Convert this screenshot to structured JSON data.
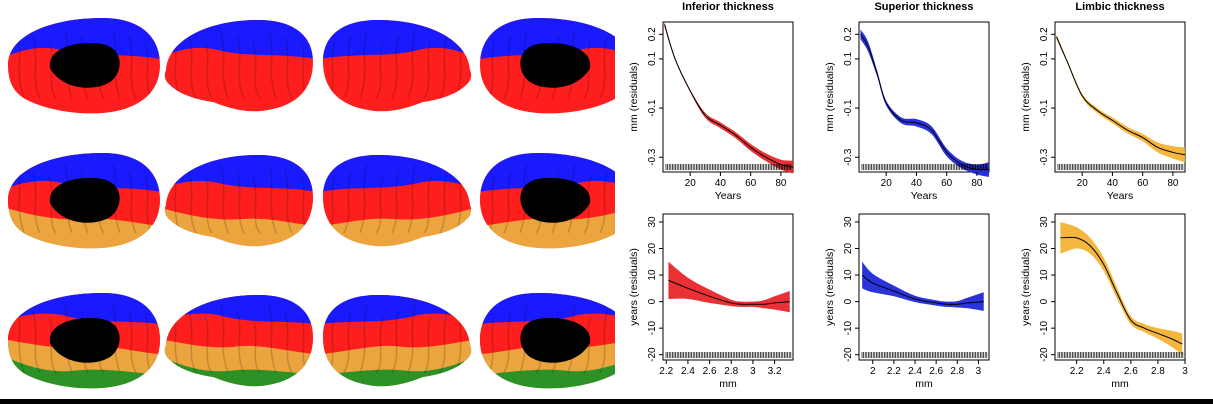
{
  "figure": {
    "brain_rows": [
      {
        "name": "two-cluster",
        "colors": [
          "blue",
          "red"
        ]
      },
      {
        "name": "three-cluster",
        "colors": [
          "blue",
          "red",
          "orange"
        ]
      },
      {
        "name": "four-cluster",
        "colors": [
          "blue",
          "red",
          "orange",
          "green"
        ]
      }
    ],
    "colors": {
      "blue": "#1a1aff",
      "red": "#ff1e1e",
      "orange": "#eba43e",
      "green": "#2d9226",
      "medial_wall": "#000000",
      "band_red": "#e8262a",
      "band_blue": "#1f27d8",
      "band_orange": "#f3b232"
    }
  },
  "chart_data": [
    {
      "type": "line",
      "title": "Inferior thickness",
      "xlabel": "Years",
      "ylabel": "mm (residuals)",
      "xlim": [
        2,
        88
      ],
      "ylim": [
        -0.36,
        0.25
      ],
      "xticks": [
        20,
        40,
        60,
        80
      ],
      "yticks": [
        0.2,
        0.1,
        -0.1,
        -0.3
      ],
      "color": "red",
      "x": [
        3,
        10,
        20,
        30,
        40,
        50,
        60,
        70,
        80,
        88
      ],
      "y": [
        0.24,
        0.1,
        -0.03,
        -0.13,
        -0.17,
        -0.21,
        -0.26,
        -0.3,
        -0.33,
        -0.34
      ],
      "band": [
        0.01,
        0.005,
        0.005,
        0.01,
        0.012,
        0.012,
        0.014,
        0.016,
        0.02,
        0.026
      ]
    },
    {
      "type": "line",
      "title": "Superior thickness",
      "xlabel": "Years",
      "ylabel": "mm (residuals)",
      "xlim": [
        2,
        88
      ],
      "ylim": [
        -0.36,
        0.25
      ],
      "xticks": [
        20,
        40,
        60,
        80
      ],
      "yticks": [
        0.2,
        0.1,
        -0.1,
        -0.3
      ],
      "color": "blue",
      "x": [
        3,
        8,
        14,
        20,
        30,
        40,
        50,
        60,
        70,
        80,
        88
      ],
      "y": [
        0.2,
        0.15,
        0.04,
        -0.08,
        -0.15,
        -0.16,
        -0.19,
        -0.28,
        -0.33,
        -0.35,
        -0.35
      ],
      "band": [
        0.02,
        0.02,
        0.012,
        0.01,
        0.012,
        0.015,
        0.016,
        0.016,
        0.015,
        0.02,
        0.03
      ]
    },
    {
      "type": "line",
      "title": "Limbic thickness",
      "xlabel": "Years",
      "ylabel": "mm (residuals)",
      "xlim": [
        2,
        88
      ],
      "ylim": [
        -0.36,
        0.25
      ],
      "xticks": [
        20,
        40,
        60,
        80
      ],
      "yticks": [
        0.2,
        0.1,
        -0.1,
        -0.3
      ],
      "color": "orange",
      "x": [
        3,
        10,
        20,
        30,
        40,
        50,
        60,
        70,
        80,
        88
      ],
      "y": [
        0.19,
        0.09,
        -0.05,
        -0.11,
        -0.15,
        -0.19,
        -0.22,
        -0.26,
        -0.28,
        -0.29
      ],
      "band": [
        0.01,
        0.006,
        0.008,
        0.01,
        0.012,
        0.013,
        0.015,
        0.02,
        0.025,
        0.03
      ]
    },
    {
      "type": "line",
      "xlabel": "mm",
      "ylabel": "years (residuals)",
      "xlim": [
        2.17,
        3.37
      ],
      "ylim": [
        -22,
        33
      ],
      "xticks": [
        2.2,
        2.4,
        2.6,
        2.8,
        3.0,
        3.2
      ],
      "yticks": [
        -20,
        -10,
        0,
        10,
        20,
        30
      ],
      "color": "red",
      "x": [
        2.22,
        2.4,
        2.6,
        2.8,
        2.9,
        3.0,
        3.1,
        3.2,
        3.34
      ],
      "y": [
        8,
        5,
        2,
        -0.5,
        -1,
        -1,
        -1,
        -0.5,
        0
      ],
      "band": [
        7,
        4,
        2.5,
        1.2,
        1,
        1,
        1.5,
        2.5,
        4
      ]
    },
    {
      "type": "line",
      "xlabel": "mm",
      "ylabel": "years (residuals)",
      "xlim": [
        1.87,
        3.1
      ],
      "ylim": [
        -22,
        33
      ],
      "xticks": [
        2.0,
        2.2,
        2.4,
        2.6,
        2.8,
        3.0
      ],
      "yticks": [
        -20,
        -10,
        0,
        10,
        20,
        30
      ],
      "color": "blue",
      "x": [
        1.9,
        2.0,
        2.2,
        2.4,
        2.6,
        2.7,
        2.8,
        2.9,
        3.05
      ],
      "y": [
        10,
        7,
        4,
        1,
        -0.5,
        -1,
        -1,
        -0.5,
        0
      ],
      "band": [
        5,
        3.5,
        2,
        1.2,
        1,
        1,
        1.2,
        2,
        3.5
      ]
    },
    {
      "type": "line",
      "xlabel": "mm",
      "ylabel": "years (residuals)",
      "xlim": [
        2.04,
        3.0
      ],
      "ylim": [
        -22,
        33
      ],
      "xticks": [
        2.2,
        2.4,
        2.6,
        2.8,
        3.0
      ],
      "yticks": [
        -20,
        -10,
        0,
        10,
        20,
        30
      ],
      "color": "orange",
      "x": [
        2.08,
        2.2,
        2.3,
        2.4,
        2.5,
        2.6,
        2.7,
        2.8,
        2.9,
        2.98
      ],
      "y": [
        24,
        24,
        21,
        14,
        3,
        -7,
        -10,
        -12,
        -14,
        -16
      ],
      "band": [
        6,
        4,
        3,
        2.5,
        2,
        1.5,
        1.5,
        2,
        3,
        4
      ]
    }
  ]
}
